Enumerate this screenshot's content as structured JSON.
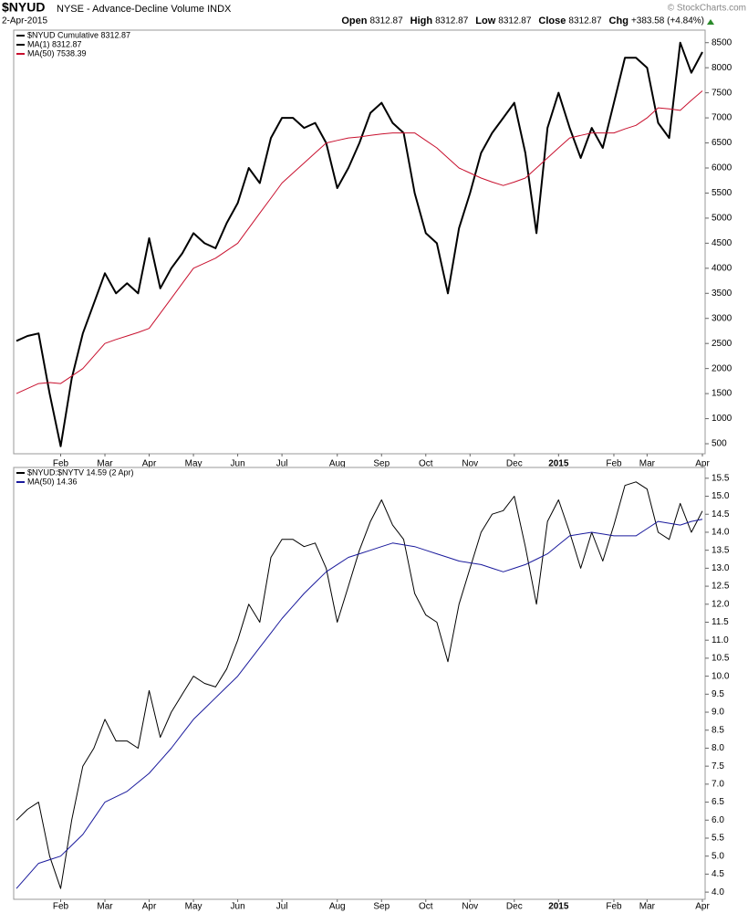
{
  "chart_data": [
    {
      "type": "line",
      "title": "$NYUD",
      "subtitle": "NYSE - Advance-Decline Volume INDX",
      "date": "2-Apr-2015",
      "watermark": "© StockCharts.com",
      "quote": [
        {
          "label": "Open",
          "value": 8312.87
        },
        {
          "label": "High",
          "value": 8312.87
        },
        {
          "label": "Low",
          "value": 8312.87
        },
        {
          "label": "Close",
          "value": 8312.87
        },
        {
          "label": "Chg",
          "value": "+383.58 (+4.84%)"
        }
      ],
      "categories": [
        null,
        null,
        null,
        null,
        "Feb",
        null,
        null,
        null,
        "Mar",
        null,
        null,
        null,
        "Apr",
        null,
        null,
        null,
        "May",
        null,
        null,
        null,
        "Jun",
        null,
        null,
        null,
        "Jul",
        null,
        null,
        null,
        null,
        "Aug",
        null,
        null,
        null,
        "Sep",
        null,
        null,
        null,
        "Oct",
        null,
        null,
        null,
        "Nov",
        null,
        null,
        null,
        "Dec",
        null,
        null,
        null,
        "2015",
        null,
        null,
        null,
        null,
        "Feb",
        null,
        null,
        "Mar",
        null,
        null,
        null,
        null,
        "Apr"
      ],
      "series": [
        {
          "name": "$NYUD Cumulative 8312.87",
          "color": "#000000",
          "width": 2,
          "values": [
            2550,
            2650,
            2700,
            1500,
            450,
            1800,
            2700,
            3300,
            3900,
            3500,
            3700,
            3500,
            4600,
            3600,
            4000,
            4300,
            4700,
            4500,
            4400,
            4900,
            5300,
            6000,
            5700,
            6600,
            7000,
            7000,
            6800,
            6900,
            6500,
            5600,
            6000,
            6500,
            7100,
            7300,
            6900,
            6700,
            5500,
            4700,
            4500,
            3500,
            4800,
            5500,
            6300,
            6700,
            7000,
            7300,
            6300,
            4700,
            6800,
            7500,
            6800,
            6200,
            6800,
            6400,
            7300,
            8200,
            8200,
            8000,
            6900,
            6600,
            8500,
            7900,
            8312.87
          ]
        },
        {
          "name": "MA(50) 7538.39",
          "color": "#c8102e",
          "width": 1,
          "values": [
            1500,
            1600,
            1700,
            1720,
            1700,
            1850,
            2000,
            2250,
            2500,
            2580,
            2650,
            2720,
            2800,
            3100,
            3400,
            3700,
            4000,
            4100,
            4200,
            4350,
            4500,
            4800,
            5100,
            5400,
            5700,
            5900,
            6100,
            6300,
            6500,
            6550,
            6600,
            6620,
            6650,
            6680,
            6700,
            6700,
            6700,
            6550,
            6400,
            6200,
            6000,
            5900,
            5800,
            5720,
            5650,
            5720,
            5800,
            6000,
            6200,
            6400,
            6600,
            6650,
            6700,
            6700,
            6700,
            6780,
            6850,
            7000,
            7200,
            7180,
            7150,
            7350,
            7538.39
          ]
        }
      ],
      "legend_extra": {
        "text": "MA(1) 8312.87",
        "color": "#000000"
      },
      "ylim": [
        300,
        8750
      ],
      "yticks": [
        500,
        1000,
        1500,
        2000,
        2500,
        3000,
        3500,
        4000,
        4500,
        5000,
        5500,
        6000,
        6500,
        7000,
        7500,
        8000,
        8500
      ]
    },
    {
      "type": "line",
      "categories": [
        null,
        null,
        null,
        null,
        "Feb",
        null,
        null,
        null,
        "Mar",
        null,
        null,
        null,
        "Apr",
        null,
        null,
        null,
        "May",
        null,
        null,
        null,
        "Jun",
        null,
        null,
        null,
        "Jul",
        null,
        null,
        null,
        null,
        "Aug",
        null,
        null,
        null,
        "Sep",
        null,
        null,
        null,
        "Oct",
        null,
        null,
        null,
        "Nov",
        null,
        null,
        null,
        "Dec",
        null,
        null,
        null,
        "2015",
        null,
        null,
        null,
        null,
        "Feb",
        null,
        null,
        "Mar",
        null,
        null,
        null,
        null,
        "Apr"
      ],
      "series": [
        {
          "name": "$NYUD:$NYTV 14.59 (2 Apr)",
          "color": "#000000",
          "width": 1,
          "values": [
            6.0,
            6.3,
            6.5,
            5.0,
            4.1,
            6.0,
            7.5,
            8.0,
            8.8,
            8.2,
            8.2,
            8.0,
            9.6,
            8.3,
            9.0,
            9.5,
            10.0,
            9.8,
            9.7,
            10.2,
            11.0,
            12.0,
            11.5,
            13.3,
            13.8,
            13.8,
            13.6,
            13.7,
            13.0,
            11.5,
            12.5,
            13.5,
            14.3,
            14.9,
            14.2,
            13.8,
            12.3,
            11.7,
            11.5,
            10.4,
            12.0,
            13.0,
            14.0,
            14.5,
            14.6,
            15.0,
            13.6,
            12.0,
            14.3,
            14.9,
            14.0,
            13.0,
            14.0,
            13.2,
            14.2,
            15.3,
            15.4,
            15.2,
            14.0,
            13.8,
            14.8,
            14.0,
            14.59
          ]
        },
        {
          "name": "MA(50) 14.36",
          "color": "#1a1a9c",
          "width": 1,
          "values": [
            4.1,
            4.45,
            4.8,
            4.9,
            5.0,
            5.3,
            5.6,
            6.05,
            6.5,
            6.65,
            6.8,
            7.05,
            7.3,
            7.65,
            8.0,
            8.4,
            8.8,
            9.1,
            9.4,
            9.7,
            10.0,
            10.4,
            10.8,
            11.2,
            11.6,
            11.95,
            12.3,
            12.6,
            12.9,
            13.1,
            13.3,
            13.4,
            13.5,
            13.6,
            13.7,
            13.65,
            13.6,
            13.5,
            13.4,
            13.3,
            13.2,
            13.15,
            13.1,
            13.0,
            12.9,
            13.0,
            13.1,
            13.25,
            13.4,
            13.65,
            13.9,
            13.95,
            14.0,
            13.95,
            13.9,
            13.9,
            13.9,
            14.1,
            14.3,
            14.25,
            14.2,
            14.3,
            14.36
          ]
        }
      ],
      "ylim": [
        3.8,
        15.8
      ],
      "yticks": [
        {
          "value": 4,
          "label": "4.0"
        },
        4.5,
        {
          "value": 5,
          "label": "5.0"
        },
        5.5,
        {
          "value": 6,
          "label": "6.0"
        },
        6.5,
        {
          "value": 7,
          "label": "7.0"
        },
        7.5,
        {
          "value": 8,
          "label": "8.0"
        },
        8.5,
        {
          "value": 9,
          "label": "9.0"
        },
        9.5,
        {
          "value": 10,
          "label": "10.0"
        },
        10.5,
        {
          "value": 11,
          "label": "11.0"
        },
        11.5,
        {
          "value": 12,
          "label": "12.0"
        },
        12.5,
        {
          "value": 13,
          "label": "13.0"
        },
        13.5,
        {
          "value": 14,
          "label": "14.0"
        },
        14.5,
        {
          "value": 15,
          "label": "15.0"
        },
        15.5
      ]
    }
  ]
}
